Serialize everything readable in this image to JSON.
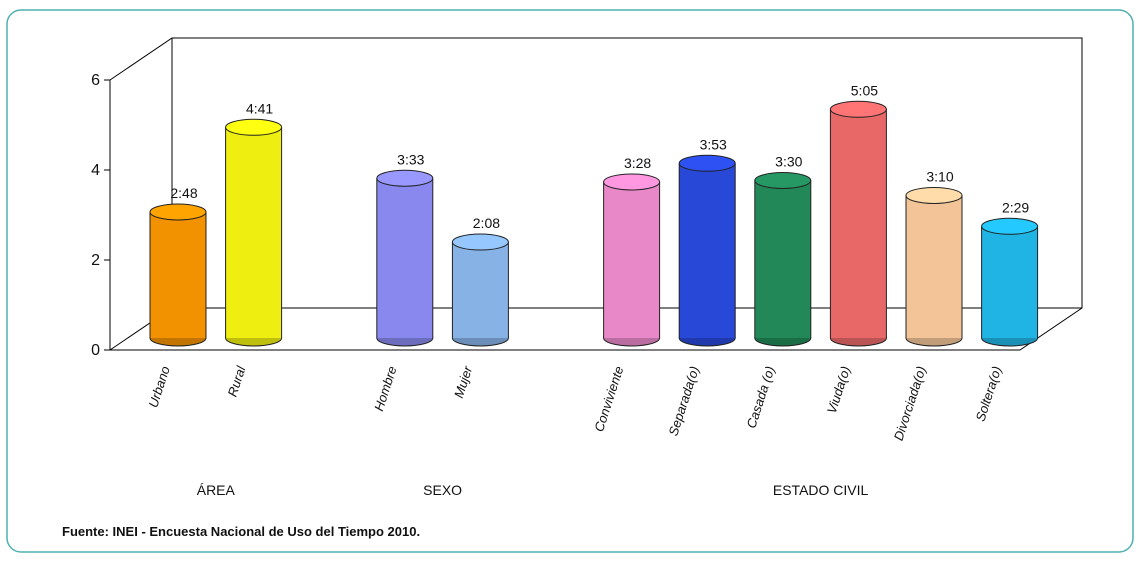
{
  "chart_data": {
    "type": "bar",
    "ylim": [
      0,
      6
    ],
    "yticks": [
      0,
      2,
      4,
      6
    ],
    "groups": [
      {
        "label": "ÁREA",
        "categories": [
          "Urbano",
          "Rural"
        ],
        "values": [
          2.8,
          4.683
        ],
        "value_labels": [
          "2:48",
          "4:41"
        ],
        "colors": [
          "#f39200",
          "#eeee10"
        ]
      },
      {
        "label": "SEXO",
        "categories": [
          "Hombre",
          "Mujer"
        ],
        "values": [
          3.55,
          2.133
        ],
        "value_labels": [
          "3:33",
          "2:08"
        ],
        "colors": [
          "#8888ee",
          "#86b2e6"
        ]
      },
      {
        "label": "ESTADO CIVIL",
        "categories": [
          "Conviviente",
          "Separada(o)",
          "Casada (o)",
          "Viuda(o)",
          "Divorciada(o)",
          "Soltera(o)"
        ],
        "values": [
          3.467,
          3.883,
          3.5,
          5.083,
          3.167,
          2.483
        ],
        "value_labels": [
          "3:28",
          "3:53",
          "3:30",
          "5:05",
          "3:10",
          "2:29"
        ],
        "colors": [
          "#e888c8",
          "#2848d8",
          "#228858",
          "#e86868",
          "#f2c498",
          "#20b4e4"
        ]
      }
    ],
    "source": "Fuente: INEI - Encuesta Nacional de Uso del Tiempo 2010."
  }
}
